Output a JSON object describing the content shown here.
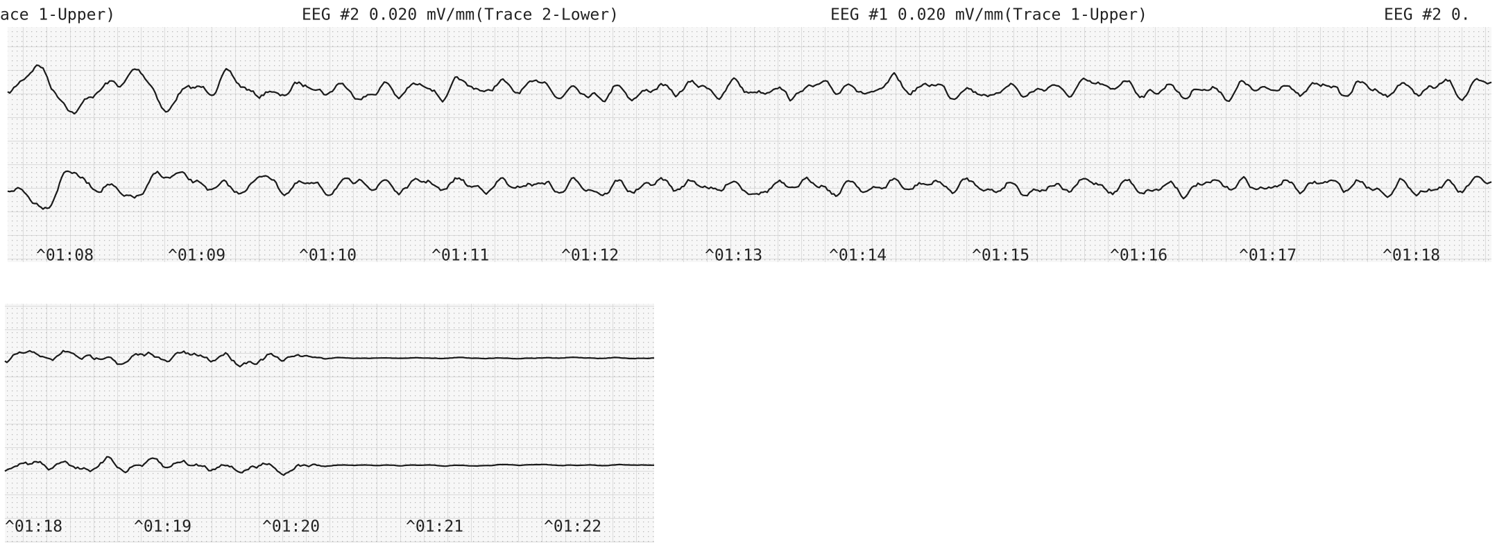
{
  "header": {
    "labels": [
      "ace 1-Upper)",
      "EEG #2 0.020 mV/mm(Trace 2-Lower)",
      "EEG #1 0.020 mV/mm(Trace 1-Upper)",
      "EEG #2 0."
    ]
  },
  "strips": [
    {
      "time_marks": [
        "^01:08",
        "^01:09",
        "^01:10",
        "^01:11",
        "^01:12",
        "^01:13",
        "^01:14",
        "^01:15",
        "^01:16",
        "^01:17",
        "^01:18"
      ]
    },
    {
      "time_marks": [
        "^01:18",
        "^01:19",
        "^01:20",
        "^01:21",
        "^01:22"
      ]
    }
  ]
}
